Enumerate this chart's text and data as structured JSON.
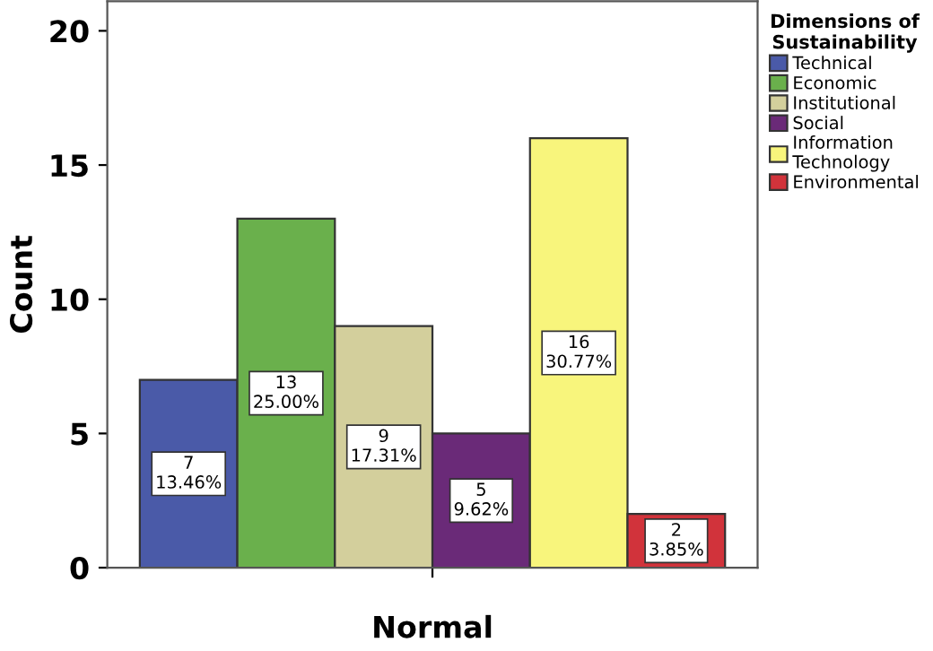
{
  "chart_data": {
    "type": "bar",
    "categories": [
      "Normal"
    ],
    "ylabel": "Count",
    "legend_title": "Dimensions of\nSustainability",
    "legend": "top right",
    "ylim": [
      0,
      21.1
    ],
    "yticks": [
      0,
      5,
      10,
      15,
      20
    ],
    "grid": false,
    "series": [
      {
        "name": "Technical",
        "color": "#4a5aa8",
        "values": [
          7
        ],
        "value_labels": [
          "7\n13.46%"
        ]
      },
      {
        "name": "Economic",
        "color": "#6ab04c",
        "values": [
          13
        ],
        "value_labels": [
          "13\n25.00%"
        ]
      },
      {
        "name": "Institutional",
        "color": "#d3cf9c",
        "values": [
          9
        ],
        "value_labels": [
          "9\n17.31%"
        ]
      },
      {
        "name": "Social",
        "color": "#6a2a78",
        "values": [
          5
        ],
        "value_labels": [
          "5\n9.62%"
        ]
      },
      {
        "name": "Information\nTechnology",
        "color": "#f8f57c",
        "values": [
          16
        ],
        "value_labels": [
          "16\n30.77%"
        ]
      },
      {
        "name": "Environmental",
        "color": "#d1333b",
        "values": [
          2
        ],
        "value_labels": [
          "2\n3.85%"
        ]
      }
    ]
  }
}
